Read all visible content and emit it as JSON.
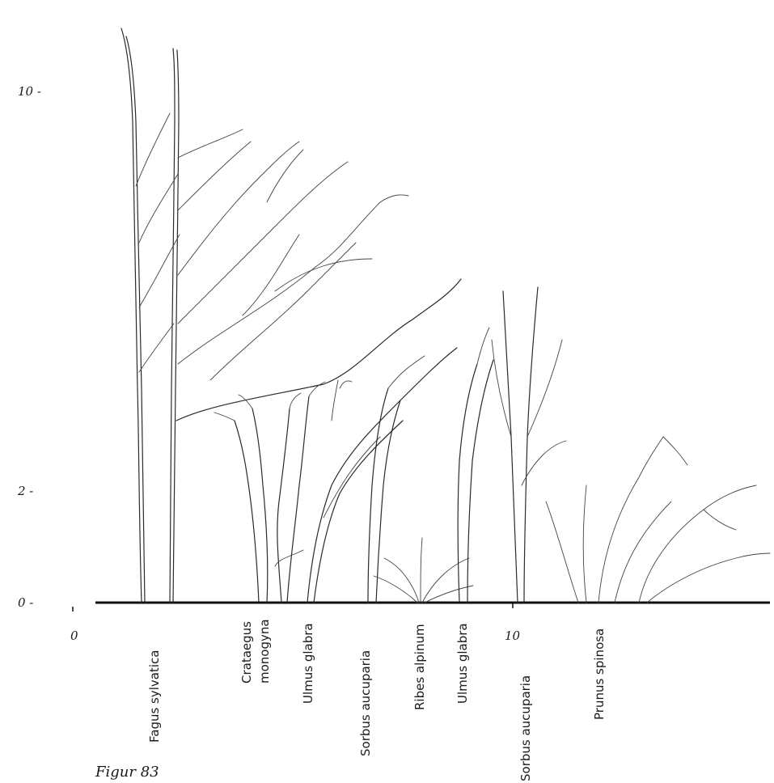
{
  "y_axis": {
    "labels": [
      "10 -",
      "2 -",
      "0 -"
    ]
  },
  "x_axis": {
    "labels": [
      "0",
      "10"
    ]
  },
  "species": [
    {
      "id": "fagus",
      "lines": [
        "Fagus sylvatica"
      ]
    },
    {
      "id": "crataegus",
      "lines": [
        "Crataegus",
        "monogyna"
      ]
    },
    {
      "id": "ulmus1",
      "lines": [
        "Ulmus glabra"
      ]
    },
    {
      "id": "sorbus1",
      "lines": [
        "Sorbus aucuparia"
      ]
    },
    {
      "id": "ribes",
      "lines": [
        "Ribes alpinum"
      ]
    },
    {
      "id": "ulmus2",
      "lines": [
        "Ulmus glabra"
      ]
    },
    {
      "id": "sorbus2",
      "lines": [
        "Sorbus aucuparia"
      ]
    },
    {
      "id": "prunus",
      "lines": [
        "Prunus spinosa"
      ]
    }
  ],
  "caption": "Figur 83",
  "colors": {
    "ink": "#1a1a1a",
    "ground": "#111111"
  }
}
